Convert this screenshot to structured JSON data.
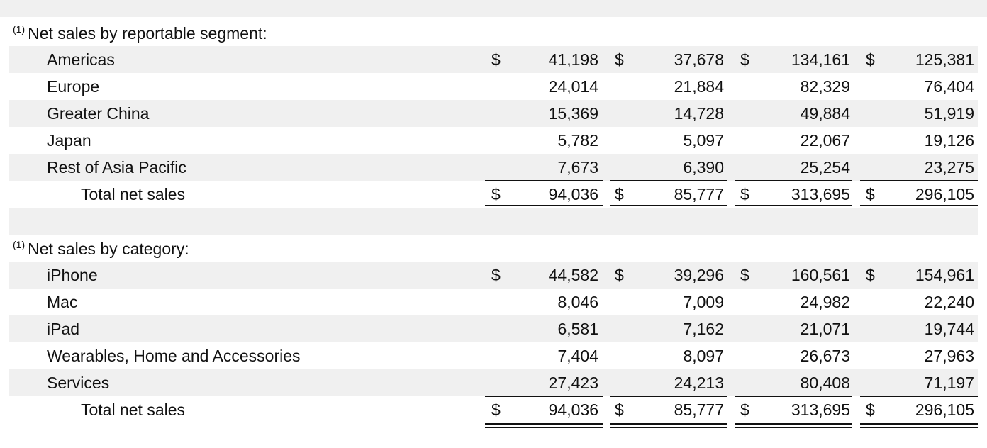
{
  "segment_section": {
    "footnote_marker": "(1)",
    "heading": "Net sales by reportable segment:",
    "rows": [
      {
        "label": "Americas",
        "values": [
          "41,198",
          "37,678",
          "134,161",
          "125,381"
        ],
        "currency": "$"
      },
      {
        "label": "Europe",
        "values": [
          "24,014",
          "21,884",
          "82,329",
          "76,404"
        ]
      },
      {
        "label": "Greater China",
        "values": [
          "15,369",
          "14,728",
          "49,884",
          "51,919"
        ]
      },
      {
        "label": "Japan",
        "values": [
          "5,782",
          "5,097",
          "22,067",
          "19,126"
        ]
      },
      {
        "label": "Rest of Asia Pacific",
        "values": [
          "7,673",
          "6,390",
          "25,254",
          "23,275"
        ]
      }
    ],
    "total": {
      "label": "Total net sales",
      "values": [
        "94,036",
        "85,777",
        "313,695",
        "296,105"
      ],
      "currency": "$"
    }
  },
  "category_section": {
    "footnote_marker": "(1)",
    "heading": "Net sales by category:",
    "rows": [
      {
        "label": "iPhone",
        "values": [
          "44,582",
          "39,296",
          "160,561",
          "154,961"
        ],
        "currency": "$"
      },
      {
        "label": "Mac",
        "values": [
          "8,046",
          "7,009",
          "24,982",
          "22,240"
        ]
      },
      {
        "label": "iPad",
        "values": [
          "6,581",
          "7,162",
          "21,071",
          "19,744"
        ]
      },
      {
        "label": "Wearables, Home and Accessories",
        "values": [
          "7,404",
          "8,097",
          "26,673",
          "27,963"
        ]
      },
      {
        "label": "Services",
        "values": [
          "27,423",
          "24,213",
          "80,408",
          "71,197"
        ]
      }
    ],
    "total": {
      "label": "Total net sales",
      "values": [
        "94,036",
        "85,777",
        "313,695",
        "296,105"
      ],
      "currency": "$"
    }
  }
}
